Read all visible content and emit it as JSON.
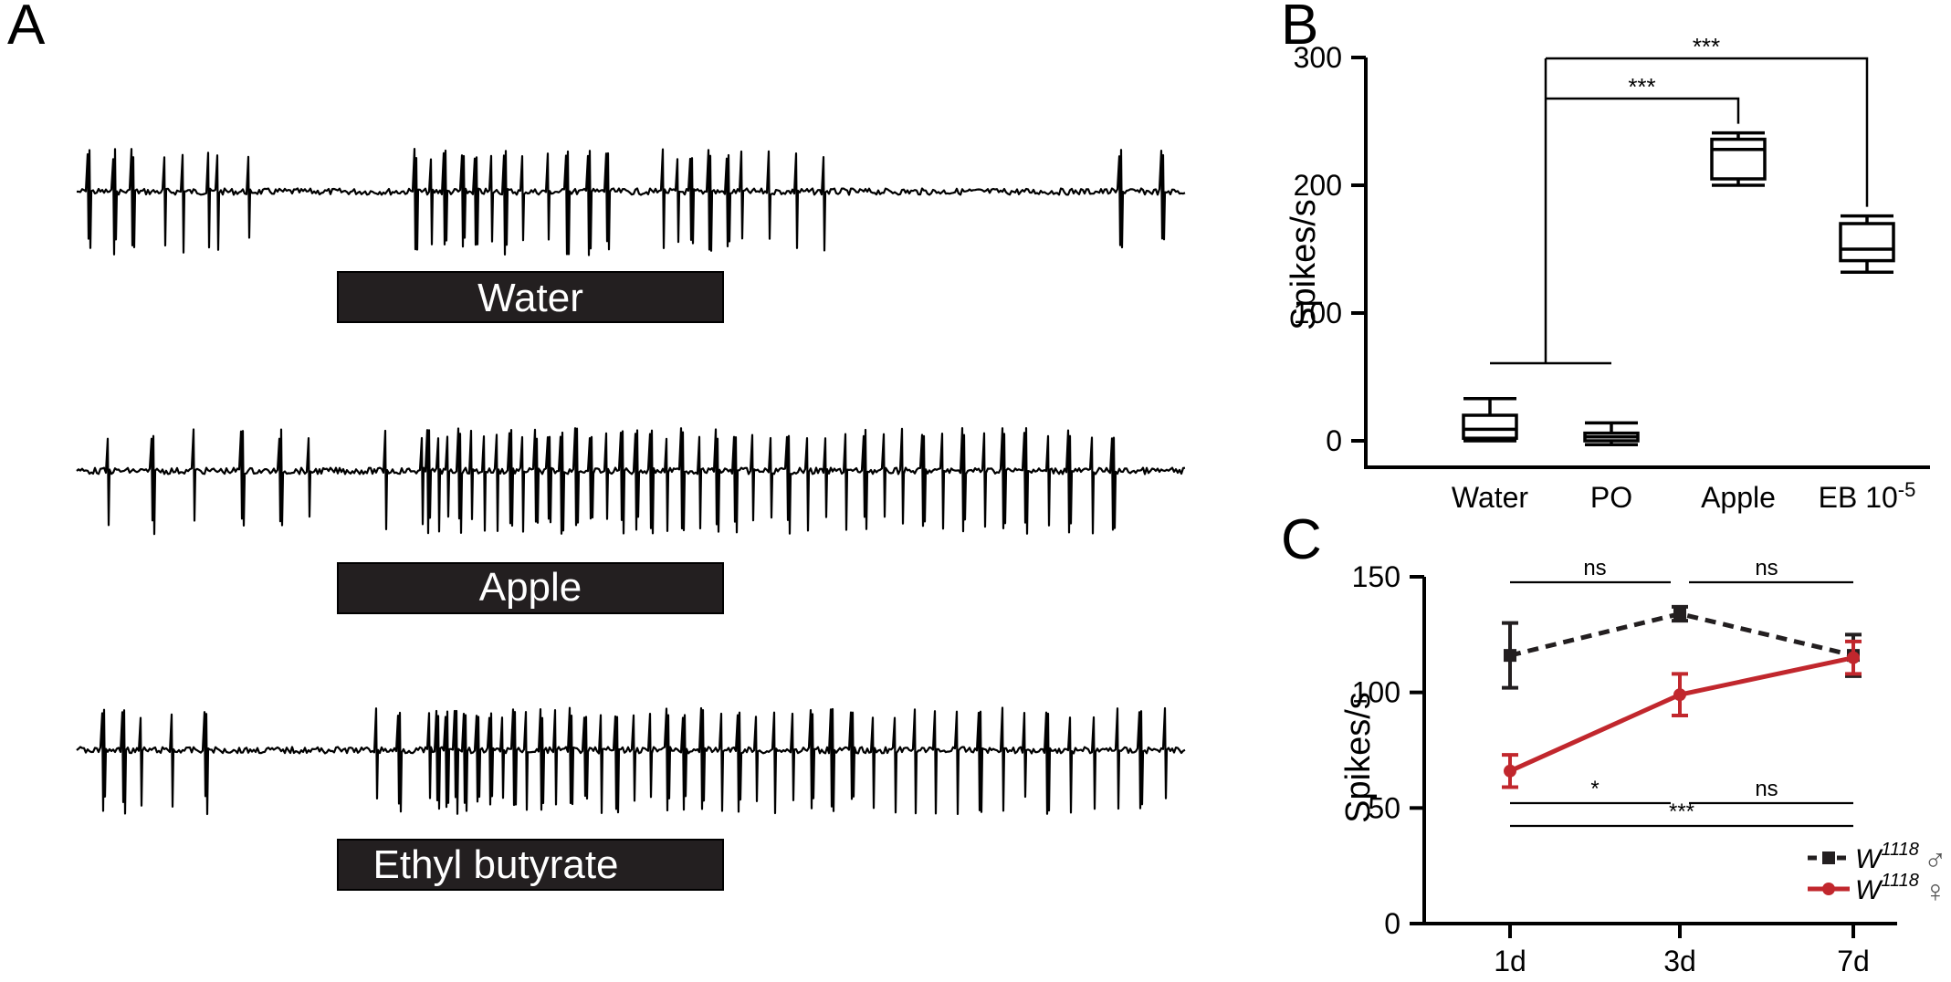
{
  "panels": {
    "a": {
      "letter": "A"
    },
    "b": {
      "letter": "B"
    },
    "c": {
      "letter": "C"
    }
  },
  "traces": [
    {
      "stimulus": "Water"
    },
    {
      "stimulus": "Apple"
    },
    {
      "stimulus": "Ethyl butyrate"
    }
  ],
  "colors": {
    "male": "#231f20",
    "female": "#c1272d",
    "stim_bar": "#231f20"
  },
  "chart_data": [
    {
      "type": "box",
      "ylabel": "Spikes/s",
      "ylim": [
        0,
        300
      ],
      "yticks": [
        0,
        100,
        200,
        300
      ],
      "categories": [
        "Water",
        "PO",
        "Apple",
        "EB 10"
      ],
      "category_suffix_sup": {
        "EB 10": "-5"
      },
      "boxes": [
        {
          "category": "Water",
          "min": 0,
          "q1": 2,
          "median": 9,
          "q3": 20,
          "max": 33
        },
        {
          "category": "PO",
          "min": -3,
          "q1": 0,
          "median": 3,
          "q3": 6,
          "max": 14
        },
        {
          "category": "Apple",
          "min": 200,
          "q1": 205,
          "median": 228,
          "q3": 236,
          "max": 241
        },
        {
          "category": "EB 10",
          "min": 132,
          "q1": 141,
          "median": 150,
          "q3": 170,
          "max": 176
        }
      ],
      "significance": [
        {
          "from": [
            "Water",
            "PO"
          ],
          "to": "Apple",
          "label": "***"
        },
        {
          "from": [
            "Water",
            "PO"
          ],
          "to": "EB 10",
          "label": "***"
        }
      ]
    },
    {
      "type": "line",
      "ylabel": "Spikes/s",
      "ylim": [
        0,
        150
      ],
      "yticks": [
        0,
        50,
        100,
        150
      ],
      "x": [
        "1d",
        "3d",
        "7d"
      ],
      "series": [
        {
          "name": "W",
          "name_sup": "1118",
          "symbol": "♂",
          "marker": "square",
          "dashed": true,
          "values": [
            116,
            134,
            116
          ],
          "errors": [
            14,
            3,
            9
          ]
        },
        {
          "name": "W",
          "name_sup": "1118",
          "symbol": "♀",
          "marker": "circle",
          "dashed": false,
          "values": [
            66,
            99,
            115
          ],
          "errors": [
            7,
            9,
            7
          ]
        }
      ],
      "significance_top": [
        {
          "from": "1d",
          "to": "3d",
          "label": "ns"
        },
        {
          "from": "3d",
          "to": "7d",
          "label": "ns"
        }
      ],
      "significance_bottom": [
        {
          "from": "1d",
          "to": "3d",
          "label": "*"
        },
        {
          "from": "3d",
          "to": "7d",
          "label": "ns"
        },
        {
          "from": "1d",
          "to": "7d",
          "label": "***"
        }
      ],
      "legend_position": "bottom-right"
    }
  ]
}
